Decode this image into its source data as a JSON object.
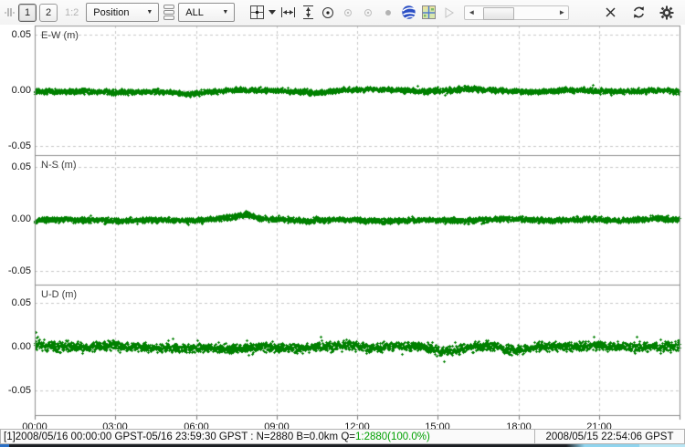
{
  "toolbar": {
    "view_button_1": "1",
    "view_button_2": "2",
    "split_label": "1:2",
    "plot_type": {
      "value": "Position"
    },
    "obs_filter": {
      "value": "ALL"
    },
    "icon_names": [
      "grip",
      "fit-icon",
      "fit-dropdown-caret",
      "fit-horizontal-icon",
      "fit-vertical-icon",
      "center-origin-icon",
      "track-center-icon",
      "track-center-2-icon",
      "fix-center-icon",
      "google-earth-icon",
      "map-view-icon",
      "animate-play-icon",
      "time-scrollbar",
      "close-icon",
      "refresh-icon",
      "options-gear-icon"
    ],
    "scrollbar": {
      "left_arrow": "◄",
      "right_arrow": "►"
    },
    "dropdown_arrow": "▼"
  },
  "status": {
    "left_prefix": "[1]2008/05/16 00:00:00 GPST-05/16 23:59:30 GPST : N=2880 B=0.0km Q=",
    "left_quality": "1:2880(100.0%)",
    "right_time": "2008/05/15 22:54:06 GPST"
  },
  "chart_data": {
    "type": "scatter",
    "marker": "plus",
    "marker_color": "#008000",
    "grid": true,
    "grid_color": "#c8c8c8",
    "border_color": "#8f8f8f",
    "n_points_per_series": 2880,
    "x_range_hours": [
      0,
      24
    ],
    "xtick_hours": [
      0,
      3,
      6,
      9,
      12,
      15,
      18,
      21
    ],
    "xtick_labels": [
      "00:00",
      "03:00",
      "06:00",
      "09:00",
      "12:00",
      "15:00",
      "18:00",
      "21:00"
    ],
    "ytick_values": [
      0.05,
      0.0,
      -0.05
    ],
    "ytick_labels": [
      "0.05",
      "0.00",
      "-0.05"
    ],
    "ylim": [
      -0.058,
      0.058
    ],
    "series": [
      {
        "name": "E-W (m)",
        "anchors": [
          [
            0,
            -0.001,
            0.0022
          ],
          [
            1.5,
            -0.0005,
            0.0022
          ],
          [
            3,
            -0.0015,
            0.0022
          ],
          [
            4.5,
            -0.0008,
            0.0022
          ],
          [
            5.8,
            -0.0032,
            0.0024
          ],
          [
            6.5,
            -0.001,
            0.0022
          ],
          [
            7.5,
            0.0008,
            0.0022
          ],
          [
            9,
            0.0,
            0.0022
          ],
          [
            10.5,
            -0.002,
            0.0024
          ],
          [
            11.5,
            0.0005,
            0.0022
          ],
          [
            13,
            0.0012,
            0.0022
          ],
          [
            14.5,
            -0.0008,
            0.0022
          ],
          [
            16,
            0.0015,
            0.0026
          ],
          [
            17,
            0.0005,
            0.0022
          ],
          [
            18.5,
            -0.0012,
            0.0022
          ],
          [
            20,
            0.0008,
            0.0022
          ],
          [
            21.5,
            -0.001,
            0.0022
          ],
          [
            23,
            0.0,
            0.0022
          ],
          [
            24,
            -0.0005,
            0.0022
          ]
        ]
      },
      {
        "name": "N-S (m)",
        "anchors": [
          [
            0,
            -0.001,
            0.0024
          ],
          [
            1.5,
            0.0,
            0.0024
          ],
          [
            3,
            -0.0015,
            0.0024
          ],
          [
            4.5,
            -0.0005,
            0.0024
          ],
          [
            6,
            -0.0012,
            0.0024
          ],
          [
            7.3,
            0.002,
            0.0028
          ],
          [
            7.8,
            0.0048,
            0.003
          ],
          [
            8.4,
            0.0008,
            0.0024
          ],
          [
            10,
            -0.0015,
            0.0024
          ],
          [
            11.5,
            -0.0002,
            0.0024
          ],
          [
            13,
            -0.0018,
            0.0024
          ],
          [
            14.5,
            -0.0005,
            0.0026
          ],
          [
            16,
            -0.0015,
            0.0024
          ],
          [
            17.5,
            0.0005,
            0.0024
          ],
          [
            19,
            -0.0012,
            0.0024
          ],
          [
            20.5,
            0.0,
            0.0024
          ],
          [
            22,
            -0.001,
            0.0024
          ],
          [
            23.2,
            0.0008,
            0.0026
          ],
          [
            24,
            -0.0005,
            0.0024
          ]
        ]
      },
      {
        "name": "U-D (m)",
        "anchors": [
          [
            0,
            0.002,
            0.007
          ],
          [
            0.8,
            0.0005,
            0.0065
          ],
          [
            1.8,
            0.0,
            0.0048
          ],
          [
            3,
            0.0018,
            0.005
          ],
          [
            4.2,
            -0.0012,
            0.0048
          ],
          [
            5.2,
            -0.002,
            0.005
          ],
          [
            6.2,
            -0.0008,
            0.0048
          ],
          [
            7.2,
            -0.002,
            0.005
          ],
          [
            8.5,
            0.0,
            0.0048
          ],
          [
            9.5,
            -0.0018,
            0.005
          ],
          [
            10.5,
            0.0002,
            0.0048
          ],
          [
            11.5,
            0.0022,
            0.0058
          ],
          [
            12.5,
            -0.001,
            0.005
          ],
          [
            13.5,
            0.001,
            0.005
          ],
          [
            14.4,
            0.0008,
            0.0052
          ],
          [
            15.0,
            -0.0042,
            0.0058
          ],
          [
            15.6,
            -0.0045,
            0.005
          ],
          [
            16.1,
            -0.0008,
            0.0048
          ],
          [
            16.9,
            0.0022,
            0.0058
          ],
          [
            17.6,
            -0.004,
            0.005
          ],
          [
            18.2,
            -0.0025,
            0.0048
          ],
          [
            18.9,
            0.001,
            0.005
          ],
          [
            20,
            0.0,
            0.0048
          ],
          [
            21,
            0.0012,
            0.005
          ],
          [
            22,
            -0.0008,
            0.005
          ],
          [
            23,
            0.001,
            0.0058
          ],
          [
            24,
            0.0005,
            0.0058
          ]
        ]
      }
    ]
  }
}
